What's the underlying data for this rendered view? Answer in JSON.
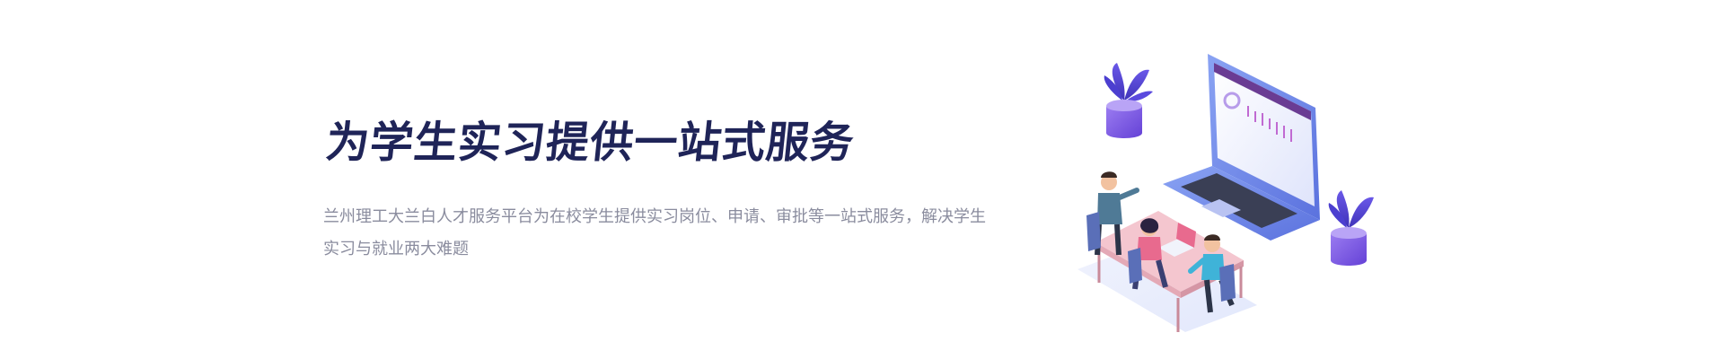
{
  "hero": {
    "headline": "为学生实习提供一站式服务",
    "description": "兰州理工大兰白人才服务平台为在校学生提供实习岗位、申请、审批等一站式服务，解决学生实习与就业两大难题"
  },
  "colors": {
    "headline": "#1f2458",
    "description": "#8a8c9e",
    "laptop_body": "#6f8bea",
    "laptop_screen": "#e9ecfb",
    "plant_pot": "#7a5ce0",
    "desk_top": "#f4c6cf"
  },
  "illustration": {
    "name": "team-working-at-desk-with-laptop",
    "icons": [
      "laptop-icon",
      "plant-icon",
      "person-icon",
      "chart-icon"
    ]
  }
}
